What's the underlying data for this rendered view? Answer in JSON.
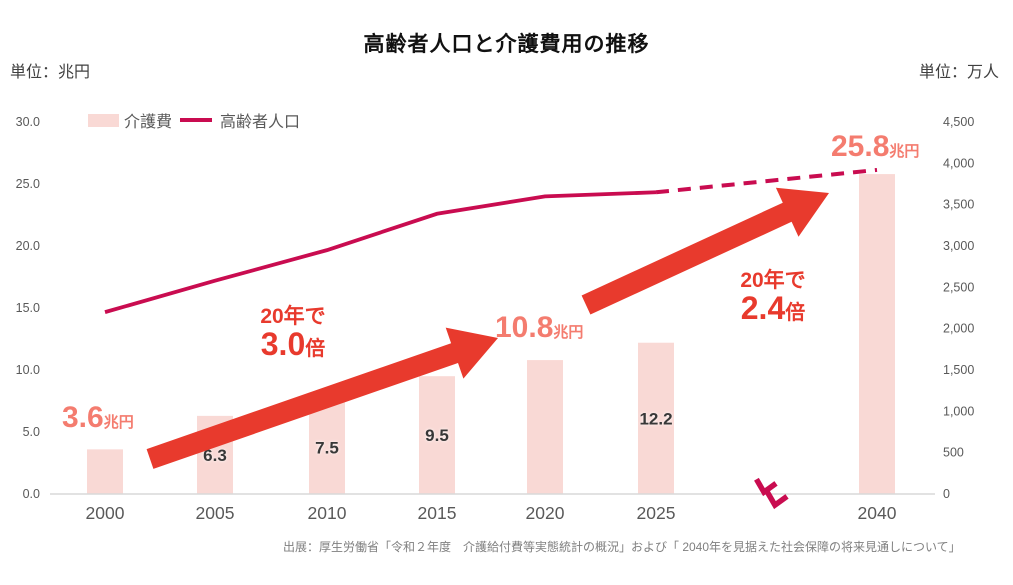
{
  "title": "高齢者人口と介護費用の推移",
  "left_axis_unit": "単位：兆円",
  "right_axis_unit": "単位：万人",
  "legend": {
    "bar_label": "介護費",
    "line_label": "高齢者人口"
  },
  "source": "出展：厚生労働省「令和２年度　介護給付費等実態統計の概況」および「 2040年を見据えた社会保障の将来見通しについて」",
  "colors": {
    "bar": "#F9D9D5",
    "line": "#C90C50",
    "arrow": "#E83A2D",
    "highlight_value": "#F47C6F",
    "annotation_text": "#E83A2D",
    "axis_text": "#595959",
    "bar_label_text": "#383838",
    "axis_line": "#D9D9D9",
    "source_text": "#808080"
  },
  "chart_data": {
    "type": "bar",
    "subtype": "bar+line combo, dual axis",
    "categories": [
      "2000",
      "2005",
      "2010",
      "2015",
      "2020",
      "2025",
      "2040"
    ],
    "series": [
      {
        "name": "介護費",
        "type": "bar",
        "axis": "left",
        "unit": "兆円",
        "values": [
          3.6,
          6.3,
          7.5,
          9.5,
          10.8,
          12.2,
          25.8
        ]
      },
      {
        "name": "高齢者人口",
        "type": "line",
        "axis": "right",
        "unit": "万人",
        "values": [
          2200,
          2580,
          2950,
          3390,
          3600,
          3650,
          3920
        ],
        "dashed_from_index": 5
      }
    ],
    "left_axis": {
      "title": "単位：兆円",
      "range": [
        0,
        30
      ],
      "tick_step": 5,
      "tick_labels": [
        "0.0",
        "5.0",
        "10.0",
        "15.0",
        "20.0",
        "25.0",
        "30.0"
      ]
    },
    "right_axis": {
      "title": "単位：万人",
      "range": [
        0,
        4500
      ],
      "tick_step": 500,
      "tick_labels": [
        "0",
        "500",
        "1,000",
        "1,500",
        "2,000",
        "2,500",
        "3,000",
        "3,500",
        "4,000",
        "4,500"
      ]
    },
    "bar_value_labels": [
      {
        "index": 1,
        "label": "6.3"
      },
      {
        "index": 2,
        "label": "7.5"
      },
      {
        "index": 3,
        "label": "9.5"
      },
      {
        "index": 5,
        "label": "12.2"
      }
    ],
    "highlight_labels": [
      {
        "index": 0,
        "value": "3.6",
        "unit": "兆円"
      },
      {
        "index": 4,
        "value": "10.8",
        "unit": "兆円"
      },
      {
        "index": 6,
        "value": "25.8",
        "unit": "兆円"
      }
    ],
    "annotations": [
      {
        "line1": "20年で",
        "value": "3.0",
        "suffix": "倍"
      },
      {
        "line1": "20年で",
        "value": "2.4",
        "suffix": "倍"
      }
    ],
    "axis_break_between": [
      "2025",
      "2040"
    ],
    "grid": false,
    "legend_position": "top-left"
  }
}
